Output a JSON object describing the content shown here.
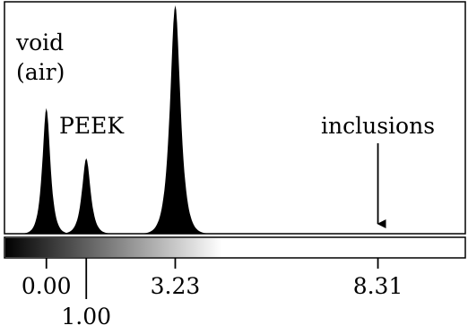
{
  "chart_data": {
    "type": "area",
    "title": "",
    "xlabel": "",
    "ylabel": "",
    "x_range": [
      -1.05,
      10.5
    ],
    "ylim": [
      0,
      1.0
    ],
    "grid": false,
    "legend": "none",
    "series": [
      {
        "label_lines": [
          "void",
          "(air)"
        ],
        "peak_x": 0.0,
        "peak_y": 0.55,
        "width": 0.13
      },
      {
        "label_lines": [
          "PEEK"
        ],
        "peak_x": 1.0,
        "peak_y": 0.33,
        "width": 0.14
      },
      {
        "label_lines": [],
        "peak_x": 3.23,
        "peak_y": 1.0,
        "width": 0.17
      }
    ],
    "annotation": {
      "text": "inclusions",
      "x": 8.31
    },
    "ticks": [
      {
        "value": 0.0,
        "label": "0.00"
      },
      {
        "value": 1.0,
        "label": "1.00"
      },
      {
        "value": 3.23,
        "label": "3.23"
      },
      {
        "value": 8.31,
        "label": "8.31"
      }
    ],
    "colorbar": {
      "start_x": -1.05,
      "end_x": 4.4,
      "start_color": "#000000",
      "end_color": "#ffffff"
    },
    "colors": {
      "fill": "#000000",
      "frame": "#000000",
      "background": "#ffffff"
    }
  }
}
